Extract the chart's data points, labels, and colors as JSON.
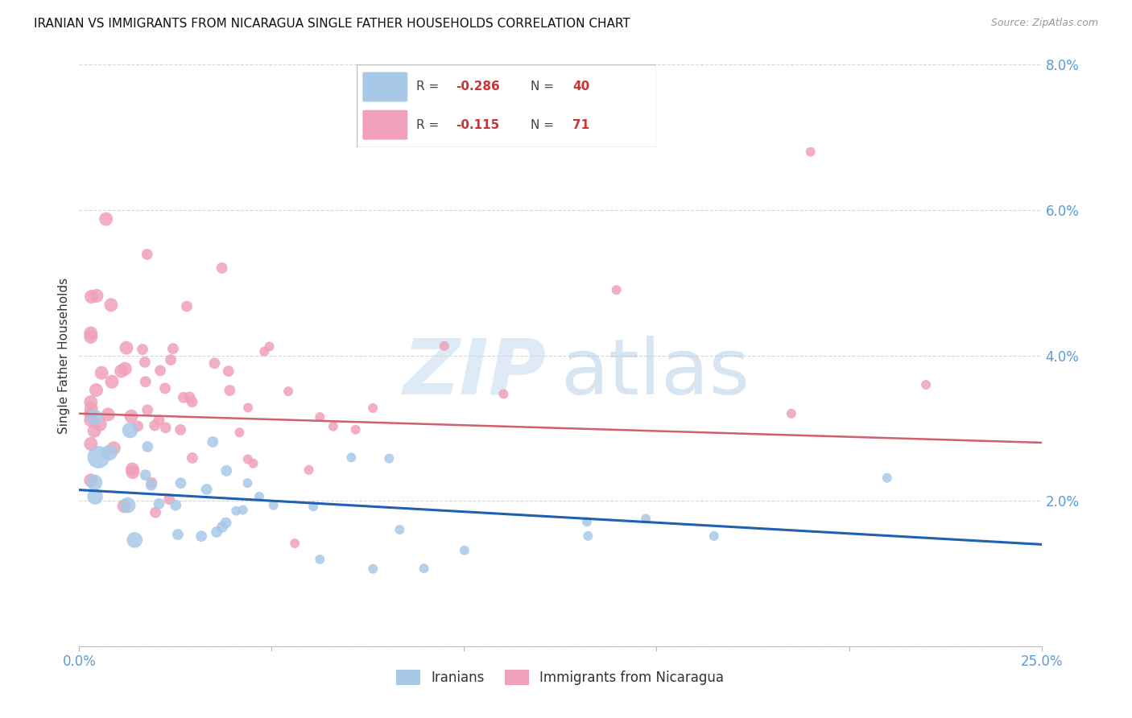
{
  "title": "IRANIAN VS IMMIGRANTS FROM NICARAGUA SINGLE FATHER HOUSEHOLDS CORRELATION CHART",
  "source": "Source: ZipAtlas.com",
  "ylabel": "Single Father Households",
  "xlim": [
    0.0,
    0.25
  ],
  "ylim": [
    0.0,
    0.08
  ],
  "iranians_color": "#A8C8E8",
  "nicaragua_color": "#F0A0B8",
  "iranians_line_color": "#2060B0",
  "nicaragua_line_color": "#D06070",
  "background_color": "#FFFFFF",
  "grid_color": "#CCCCCC",
  "axis_label_color": "#5B9BD5",
  "tick_label_color": "#5B9BD5",
  "title_fontsize": 11,
  "iran_trend_x": [
    0.0,
    0.25
  ],
  "iran_trend_y": [
    0.0215,
    0.014
  ],
  "nic_trend_x": [
    0.0,
    0.25
  ],
  "nic_trend_y": [
    0.032,
    0.028
  ]
}
